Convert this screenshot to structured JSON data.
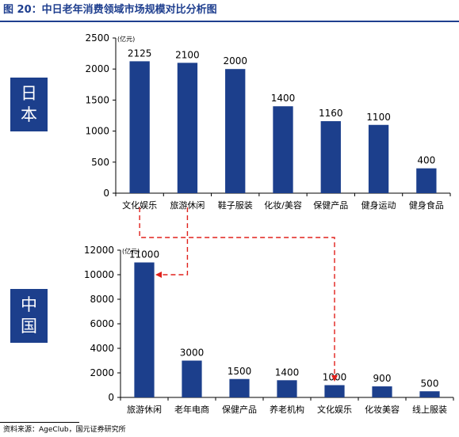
{
  "figure": {
    "title": "图 20：中日老年消费领域市场规模对比分析图",
    "source": "资料来源：AgeClub，国元证券研究所",
    "accent_color": "#1c3f8c",
    "arrow_color": "#e0201b"
  },
  "panels": {
    "japan_label": [
      "日",
      "本"
    ],
    "china_label": [
      "中",
      "国"
    ]
  },
  "chart_data": [
    {
      "type": "bar",
      "country": "日本",
      "unit_label": "(亿元)",
      "categories": [
        "文化娱乐",
        "旅游休闲",
        "鞋子服装",
        "化妆/美容",
        "保健产品",
        "健身运动",
        "健身食品"
      ],
      "values": [
        2125,
        2100,
        2000,
        1400,
        1160,
        1100,
        400
      ],
      "data_labels": [
        "2125",
        "2100",
        "2000",
        "1400",
        "1160",
        "1100",
        "400"
      ],
      "ylim": [
        0,
        2500
      ],
      "yticks": [
        0,
        500,
        1000,
        1500,
        2000,
        2500
      ],
      "bar_color": "#1c3f8c",
      "grid": false
    },
    {
      "type": "bar",
      "country": "中国",
      "unit_label": "(亿元)",
      "categories": [
        "旅游休闲",
        "老年电商",
        "保健产品",
        "养老机构",
        "文化娱乐",
        "化妆美容",
        "线上服装"
      ],
      "values": [
        11000,
        3000,
        1500,
        1400,
        1000,
        900,
        500
      ],
      "data_labels": [
        "11000",
        "3000",
        "1500",
        "1400",
        "1000",
        "900",
        "500"
      ],
      "ylim": [
        0,
        12000
      ],
      "yticks": [
        0,
        2000,
        4000,
        6000,
        8000,
        10000,
        12000
      ],
      "bar_color": "#1c3f8c",
      "grid": false
    }
  ]
}
